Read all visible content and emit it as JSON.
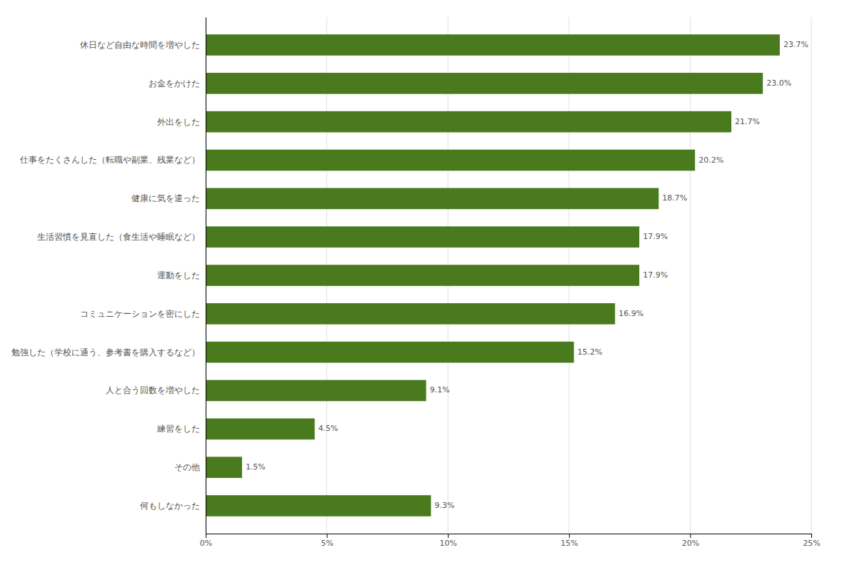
{
  "chart_data": {
    "type": "bar",
    "orientation": "horizontal",
    "categories": [
      "何もしなかった",
      "その他",
      "練習をした",
      "人と合う回数を増やした",
      "勉強した（学校に通う、参考書を購入するなど）",
      "コミュニケーションを密にした",
      "運動をした",
      "生活習慣を見直した（食生活や睡眠など）",
      "健康に気を遣った",
      "仕事をたくさんした（転職や副業、残業など）",
      "外出をした",
      "お金をかけた",
      "休日など自由な時間を増やした"
    ],
    "values": [
      9.3,
      1.5,
      4.5,
      9.1,
      15.2,
      16.9,
      17.9,
      17.9,
      18.7,
      20.2,
      21.7,
      23.0,
      23.7
    ],
    "value_labels": [
      "9.3%",
      "1.5%",
      "4.5%",
      "9.1%",
      "15.2%",
      "16.9%",
      "17.9%",
      "17.9%",
      "18.7%",
      "20.2%",
      "21.7%",
      "23.0%",
      "23.7%"
    ],
    "data_labels": true,
    "color": "#4a7a1e",
    "xlim": [
      0,
      25
    ],
    "xticks": [
      {
        "value": 0,
        "label": "0%"
      },
      {
        "value": 5,
        "label": "5%"
      },
      {
        "value": 10,
        "label": "10%"
      },
      {
        "value": 15,
        "label": "15%"
      },
      {
        "value": 20,
        "label": "20%"
      },
      {
        "value": 25,
        "label": "25%"
      }
    ],
    "grid": true
  }
}
